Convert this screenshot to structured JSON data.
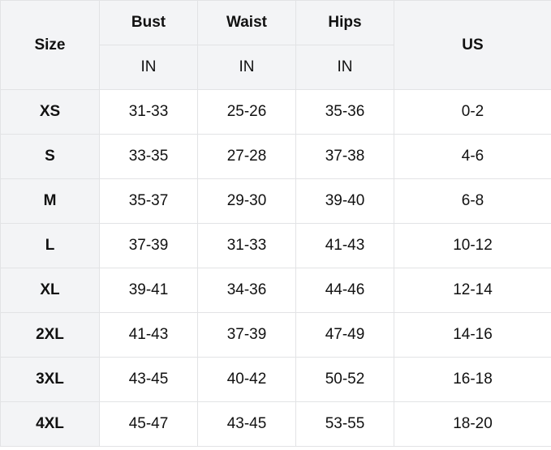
{
  "table": {
    "headers": {
      "size": "Size",
      "bust": "Bust",
      "waist": "Waist",
      "hips": "Hips",
      "us": "US"
    },
    "units": {
      "bust": "IN",
      "waist": "IN",
      "hips": "IN"
    },
    "rows": [
      [
        "XS",
        "31-33",
        "25-26",
        "35-36",
        "0-2"
      ],
      [
        "S",
        "33-35",
        "27-28",
        "37-38",
        "4-6"
      ],
      [
        "M",
        "35-37",
        "29-30",
        "39-40",
        "6-8"
      ],
      [
        "L",
        "37-39",
        "31-33",
        "41-43",
        "10-12"
      ],
      [
        "XL",
        "39-41",
        "34-36",
        "44-46",
        "12-14"
      ],
      [
        "2XL",
        "41-43",
        "37-39",
        "47-49",
        "14-16"
      ],
      [
        "3XL",
        "43-45",
        "40-42",
        "50-52",
        "16-18"
      ],
      [
        "4XL",
        "45-47",
        "43-45",
        "53-55",
        "18-20"
      ]
    ],
    "colors": {
      "header_bg": "#f3f4f6",
      "border": "#e2e3e5"
    }
  }
}
